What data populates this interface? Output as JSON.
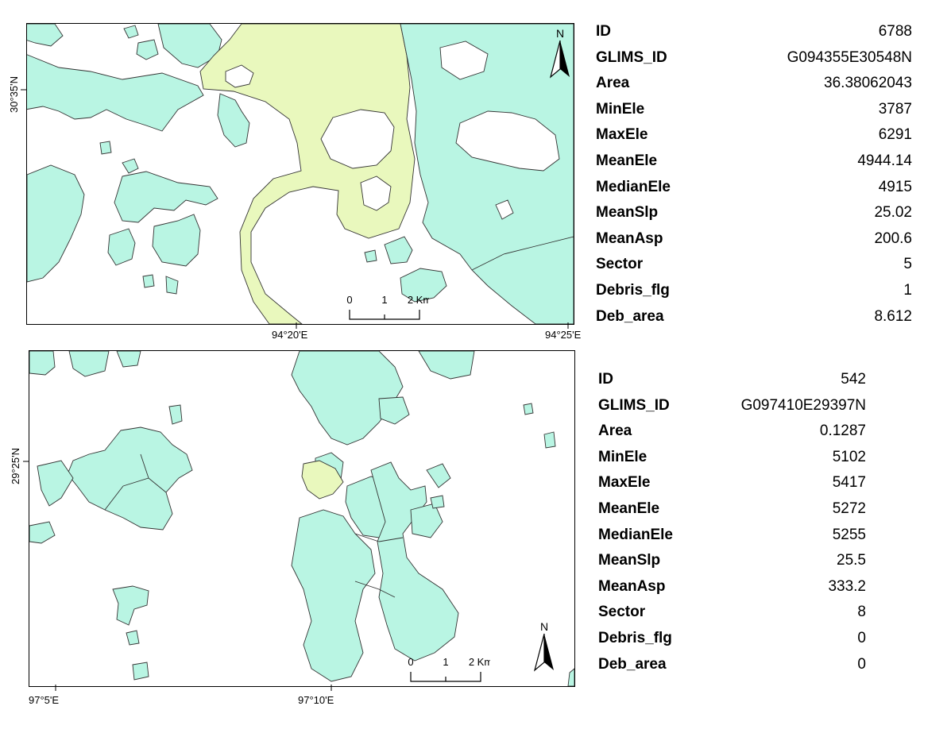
{
  "map_top": {
    "lat_label": "30°35'N",
    "lon_labels": [
      "94°20'E",
      "94°25'E"
    ],
    "north": "N",
    "scale_labels": [
      "0",
      "1",
      "2 Km"
    ],
    "colors": {
      "glacier": "#b9f5e3",
      "debris": "#e9f8bd",
      "outline": "#333333"
    }
  },
  "map_bottom": {
    "lat_label": "29°25'N",
    "lon_labels": [
      "97°5'E",
      "97°10'E"
    ],
    "north": "N",
    "scale_labels": [
      "0",
      "1",
      "2 Km"
    ]
  },
  "attributes_top": [
    {
      "key": "ID",
      "value": "6788"
    },
    {
      "key": "GLIMS_ID",
      "value": "G094355E30548N"
    },
    {
      "key": "Area",
      "value": "36.38062043"
    },
    {
      "key": "MinEle",
      "value": "3787"
    },
    {
      "key": "MaxEle",
      "value": "6291"
    },
    {
      "key": "MeanEle",
      "value": "4944.14"
    },
    {
      "key": "MedianEle",
      "value": "4915"
    },
    {
      "key": "MeanSlp",
      "value": "25.02"
    },
    {
      "key": "MeanAsp",
      "value": "200.6"
    },
    {
      "key": "Sector",
      "value": "5"
    },
    {
      "key": "Debris_flg",
      "value": "1"
    },
    {
      "key": "Deb_area",
      "value": "8.612"
    }
  ],
  "attributes_bottom": [
    {
      "key": "ID",
      "value": "542"
    },
    {
      "key": "GLIMS_ID",
      "value": "G097410E29397N"
    },
    {
      "key": "Area",
      "value": "0.1287"
    },
    {
      "key": "MinEle",
      "value": "5102"
    },
    {
      "key": "MaxEle",
      "value": "5417"
    },
    {
      "key": "MeanEle",
      "value": "5272"
    },
    {
      "key": "MedianEle",
      "value": "5255"
    },
    {
      "key": "MeanSlp",
      "value": "25.5"
    },
    {
      "key": "MeanAsp",
      "value": "333.2"
    },
    {
      "key": "Sector",
      "value": "8"
    },
    {
      "key": "Debris_flg",
      "value": "0"
    },
    {
      "key": "Deb_area",
      "value": "0"
    }
  ]
}
